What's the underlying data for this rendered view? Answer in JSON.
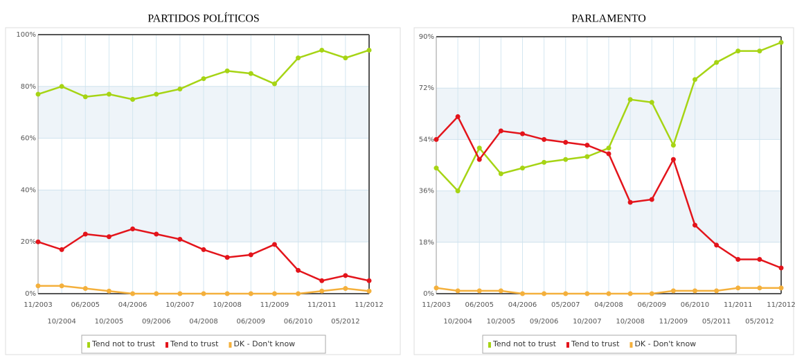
{
  "chart_data": [
    {
      "type": "line",
      "title": "PARTIDOS POLÍTICOS",
      "categories": [
        "11/2003",
        "10/2004",
        "06/2005",
        "10/2005",
        "04/2006",
        "09/2006",
        "10/2007",
        "04/2008",
        "10/2008",
        "06/2009",
        "11/2009",
        "06/2010",
        "11/2011",
        "05/2012",
        "11/2012"
      ],
      "series": [
        {
          "name": "Tend not to trust",
          "color": "#a6d414",
          "values": [
            77,
            80,
            76,
            77,
            75,
            77,
            79,
            83,
            86,
            85,
            81,
            91,
            94,
            91,
            94
          ]
        },
        {
          "name": "Tend to trust",
          "color": "#e3141b",
          "values": [
            20,
            17,
            23,
            22,
            25,
            23,
            21,
            17,
            14,
            15,
            19,
            9,
            5,
            7,
            5
          ]
        },
        {
          "name": "DK - Don't know",
          "color": "#f4b03c",
          "values": [
            3,
            3,
            2,
            1,
            0,
            0,
            0,
            0,
            0,
            0,
            0,
            0,
            1,
            2,
            1
          ]
        }
      ],
      "ylim": [
        0,
        100
      ],
      "yticks": [
        {
          "value": 0,
          "label": "0%"
        },
        {
          "value": 20,
          "label": "20%"
        },
        {
          "value": 40,
          "label": "40%"
        },
        {
          "value": 60,
          "label": "60%"
        },
        {
          "value": 80,
          "label": "80%"
        },
        {
          "value": 100,
          "label": "100%"
        }
      ],
      "grid": true,
      "legend": "bottom"
    },
    {
      "type": "line",
      "title": "PARLAMENTO",
      "categories": [
        "11/2003",
        "10/2004",
        "06/2005",
        "10/2005",
        "04/2006",
        "09/2006",
        "05/2007",
        "10/2007",
        "04/2008",
        "10/2008",
        "06/2009",
        "11/2009",
        "06/2010",
        "05/2011",
        "11/2011",
        "05/2012",
        "11/2012"
      ],
      "series": [
        {
          "name": "Tend not to trust",
          "color": "#a6d414",
          "values": [
            44,
            36,
            51,
            42,
            44,
            46,
            47,
            48,
            51,
            68,
            67,
            52,
            75,
            81,
            85,
            85,
            88
          ]
        },
        {
          "name": "Tend to trust",
          "color": "#e3141b",
          "values": [
            54,
            62,
            47,
            57,
            56,
            54,
            53,
            52,
            49,
            32,
            33,
            47,
            24,
            17,
            12,
            12,
            9
          ]
        },
        {
          "name": "DK - Don't know",
          "color": "#f4b03c",
          "values": [
            2,
            1,
            1,
            1,
            0,
            0,
            0,
            0,
            0,
            0,
            0,
            1,
            1,
            1,
            2,
            2,
            2
          ]
        }
      ],
      "ylim": [
        0,
        90
      ],
      "yticks": [
        {
          "value": 0,
          "label": "0%"
        },
        {
          "value": 18,
          "label": "18%"
        },
        {
          "value": 36,
          "label": "36%"
        },
        {
          "value": 54,
          "label": "54%"
        },
        {
          "value": 72,
          "label": "72%"
        },
        {
          "value": 90,
          "label": "90%"
        }
      ],
      "grid": true,
      "legend": "bottom"
    }
  ]
}
